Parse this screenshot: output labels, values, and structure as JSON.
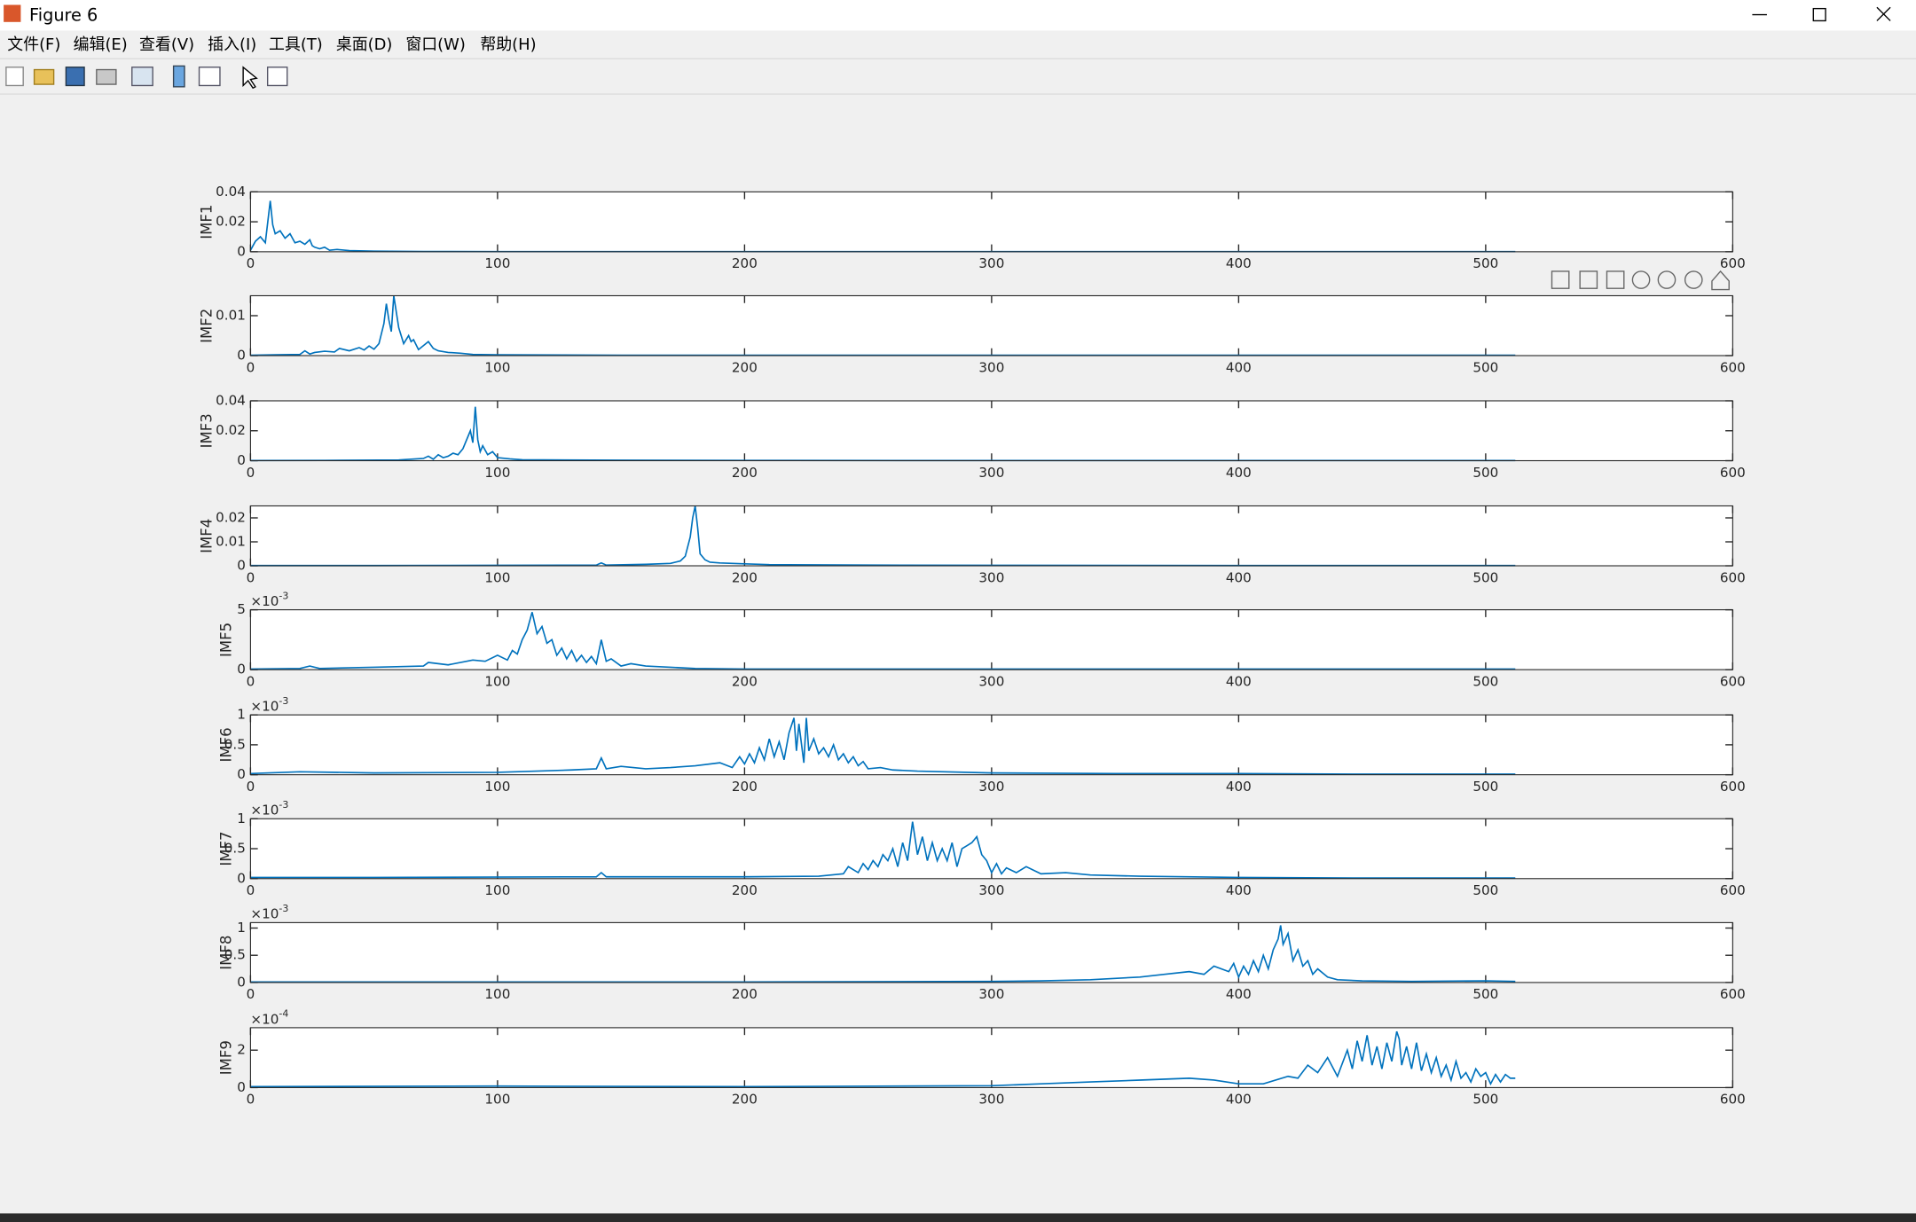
{
  "window": {
    "title": "Figure 6",
    "menu": [
      "文件(F)",
      "编辑(E)",
      "查看(V)",
      "插入(I)",
      "工具(T)",
      "桌面(D)",
      "窗口(W)",
      "帮助(H)"
    ]
  },
  "chart_data": [
    {
      "type": "line",
      "ylabel": "IMF1",
      "color": "#0072bd",
      "x": [
        0,
        2,
        4,
        6,
        7,
        8,
        9,
        10,
        12,
        14,
        16,
        18,
        20,
        22,
        24,
        25,
        26,
        28,
        30,
        32,
        35,
        40,
        50,
        70,
        100,
        200,
        300,
        400,
        512
      ],
      "values": [
        0.001,
        0.007,
        0.01,
        0.006,
        0.02,
        0.034,
        0.018,
        0.012,
        0.014,
        0.009,
        0.012,
        0.006,
        0.007,
        0.005,
        0.008,
        0.004,
        0.003,
        0.002,
        0.003,
        0.001,
        0.0015,
        0.0008,
        0.0004,
        0.0002,
        0.0001,
        0.0001,
        0.0001,
        0.0001,
        0.0001
      ],
      "xlim": [
        0,
        600
      ],
      "xticks": [
        0,
        100,
        200,
        300,
        400,
        500,
        600
      ],
      "ylim": [
        0,
        0.04
      ],
      "yticks": [
        0,
        0.02,
        0.04
      ]
    },
    {
      "type": "line",
      "ylabel": "IMF2",
      "color": "#0072bd",
      "x": [
        0,
        10,
        20,
        22,
        24,
        26,
        30,
        34,
        36,
        40,
        44,
        46,
        48,
        50,
        52,
        54,
        55,
        56,
        57,
        58,
        59,
        60,
        62,
        64,
        65,
        66,
        68,
        70,
        72,
        74,
        76,
        80,
        85,
        90,
        100,
        150,
        200,
        300,
        400,
        512
      ],
      "values": [
        0.0001,
        0.0002,
        0.0003,
        0.0012,
        0.0004,
        0.0008,
        0.0011,
        0.0009,
        0.0018,
        0.0012,
        0.002,
        0.0014,
        0.0024,
        0.0016,
        0.003,
        0.008,
        0.013,
        0.009,
        0.006,
        0.015,
        0.011,
        0.007,
        0.003,
        0.005,
        0.0035,
        0.004,
        0.0015,
        0.0025,
        0.0035,
        0.0018,
        0.0012,
        0.0008,
        0.0006,
        0.0003,
        0.0002,
        0.0001,
        0.0001,
        0.0001,
        0.0001,
        0.0001
      ],
      "xlim": [
        0,
        600
      ],
      "xticks": [
        0,
        100,
        200,
        300,
        400,
        500,
        600
      ],
      "ylim": [
        0,
        0.015
      ],
      "yticks": [
        0,
        0.01
      ]
    },
    {
      "type": "line",
      "ylabel": "IMF3",
      "color": "#0072bd",
      "x": [
        0,
        30,
        60,
        70,
        72,
        74,
        76,
        78,
        80,
        82,
        84,
        86,
        88,
        89,
        90,
        91,
        92,
        93,
        94,
        96,
        98,
        100,
        105,
        110,
        150,
        200,
        300,
        400,
        512
      ],
      "values": [
        0.0001,
        0.0002,
        0.0005,
        0.0015,
        0.003,
        0.001,
        0.004,
        0.002,
        0.003,
        0.005,
        0.004,
        0.008,
        0.016,
        0.02,
        0.012,
        0.036,
        0.014,
        0.006,
        0.01,
        0.004,
        0.006,
        0.002,
        0.0012,
        0.0006,
        0.0003,
        0.0002,
        0.0001,
        0.0001,
        0.0001
      ],
      "xlim": [
        0,
        600
      ],
      "xticks": [
        0,
        100,
        200,
        300,
        400,
        500,
        600
      ],
      "ylim": [
        0,
        0.04
      ],
      "yticks": [
        0,
        0.02,
        0.04
      ]
    },
    {
      "type": "line",
      "ylabel": "IMF4",
      "color": "#0072bd",
      "x": [
        0,
        50,
        100,
        140,
        142,
        144,
        160,
        170,
        174,
        176,
        178,
        179,
        180,
        181,
        182,
        184,
        186,
        190,
        200,
        210,
        250,
        300,
        400,
        512
      ],
      "values": [
        0.0001,
        0.0001,
        0.0002,
        0.0003,
        0.0012,
        0.0003,
        0.0006,
        0.001,
        0.002,
        0.004,
        0.012,
        0.02,
        0.025,
        0.016,
        0.005,
        0.0025,
        0.0015,
        0.0012,
        0.0008,
        0.0005,
        0.0003,
        0.0002,
        0.0001,
        0.0001
      ],
      "xlim": [
        0,
        600
      ],
      "xticks": [
        0,
        100,
        200,
        300,
        400,
        500,
        600
      ],
      "ylim": [
        0,
        0.025
      ],
      "yticks": [
        0,
        0.01,
        0.02
      ]
    },
    {
      "type": "line",
      "ylabel": "IMF5",
      "color": "#0072bd",
      "y_exponent": {
        "base": "×10",
        "power": "-3"
      },
      "x": [
        0,
        20,
        24,
        28,
        50,
        70,
        72,
        80,
        90,
        95,
        100,
        104,
        106,
        108,
        110,
        112,
        114,
        116,
        118,
        120,
        122,
        124,
        126,
        128,
        130,
        132,
        134,
        136,
        138,
        140,
        142,
        144,
        146,
        150,
        154,
        160,
        170,
        180,
        200,
        300,
        400,
        512
      ],
      "values": [
        5e-05,
        0.0001,
        0.0003,
        0.0001,
        0.0002,
        0.0003,
        0.0006,
        0.0004,
        0.0008,
        0.0007,
        0.0012,
        0.0008,
        0.0016,
        0.0013,
        0.0025,
        0.0033,
        0.0048,
        0.003,
        0.0036,
        0.0022,
        0.0025,
        0.0012,
        0.0018,
        0.0009,
        0.0016,
        0.0007,
        0.0012,
        0.0006,
        0.0011,
        0.0005,
        0.0025,
        0.0007,
        0.0009,
        0.0003,
        0.0005,
        0.0003,
        0.0002,
        0.0001,
        5e-05,
        5e-05,
        5e-05,
        5e-05
      ],
      "xlim": [
        0,
        600
      ],
      "xticks": [
        0,
        100,
        200,
        300,
        400,
        500,
        600
      ],
      "ylim": [
        0,
        0.005
      ],
      "yticks": [
        0,
        {
          "value": 0.005,
          "label": "5"
        }
      ]
    },
    {
      "type": "line",
      "ylabel": "IMF6",
      "color": "#0072bd",
      "y_exponent": {
        "base": "×10",
        "power": "-3"
      },
      "x": [
        0,
        20,
        50,
        100,
        130,
        140,
        142,
        144,
        150,
        160,
        170,
        180,
        190,
        195,
        198,
        200,
        202,
        204,
        206,
        208,
        210,
        212,
        214,
        216,
        218,
        220,
        221,
        222,
        224,
        225,
        226,
        228,
        230,
        232,
        234,
        236,
        238,
        240,
        242,
        244,
        246,
        248,
        250,
        255,
        260,
        270,
        300,
        350,
        400,
        450,
        512
      ],
      "values": [
        2e-05,
        5e-05,
        3e-05,
        4e-05,
        8e-05,
        0.0001,
        0.00028,
        0.0001,
        0.00014,
        0.0001,
        0.00012,
        0.00015,
        0.0002,
        0.00012,
        0.0003,
        0.00018,
        0.00035,
        0.0002,
        0.00045,
        0.00025,
        0.0006,
        0.0003,
        0.00055,
        0.00025,
        0.0007,
        0.00095,
        0.0004,
        0.00085,
        0.0002,
        0.00095,
        0.0004,
        0.0006,
        0.00035,
        0.00045,
        0.0003,
        0.0005,
        0.00025,
        0.00035,
        0.0002,
        0.0003,
        0.00015,
        0.00022,
        0.0001,
        0.00012,
        8e-05,
        6e-05,
        3e-05,
        2e-05,
        2e-05,
        1e-05,
        1e-05
      ],
      "xlim": [
        0,
        600
      ],
      "xticks": [
        0,
        100,
        200,
        300,
        400,
        500,
        600
      ],
      "ylim": [
        0,
        0.001
      ],
      "yticks": [
        0,
        {
          "value": 0.0005,
          "label": "0.5"
        },
        {
          "value": 0.001,
          "label": "1"
        }
      ]
    },
    {
      "type": "line",
      "ylabel": "IMF7",
      "color": "#0072bd",
      "y_exponent": {
        "base": "×10",
        "power": "-3"
      },
      "x": [
        0,
        50,
        140,
        142,
        144,
        200,
        230,
        240,
        242,
        246,
        248,
        250,
        252,
        254,
        256,
        258,
        260,
        262,
        264,
        266,
        268,
        270,
        272,
        274,
        276,
        278,
        280,
        282,
        284,
        286,
        288,
        290,
        292,
        294,
        296,
        298,
        300,
        302,
        304,
        306,
        310,
        314,
        320,
        330,
        340,
        360,
        400,
        450,
        512
      ],
      "values": [
        2e-05,
        2e-05,
        3e-05,
        0.0001,
        3e-05,
        3e-05,
        4e-05,
        8e-05,
        0.0002,
        0.0001,
        0.00025,
        0.00015,
        0.0003,
        0.0002,
        0.0004,
        0.0003,
        0.0005,
        0.0002,
        0.0006,
        0.0003,
        0.00095,
        0.0004,
        0.0007,
        0.0003,
        0.0006,
        0.0003,
        0.0005,
        0.0003,
        0.0006,
        0.0002,
        0.0005,
        0.00055,
        0.0006,
        0.0007,
        0.0004,
        0.0003,
        0.0001,
        0.00025,
        8e-05,
        0.00018,
        0.0001,
        0.0002,
        8e-05,
        0.0001,
        6e-05,
        4e-05,
        2e-05,
        1e-05,
        1e-05
      ],
      "xlim": [
        0,
        600
      ],
      "xticks": [
        0,
        100,
        200,
        300,
        400,
        500,
        600
      ],
      "ylim": [
        0,
        0.001
      ],
      "yticks": [
        0,
        {
          "value": 0.0005,
          "label": "0.5"
        },
        {
          "value": 0.001,
          "label": "1"
        }
      ]
    },
    {
      "type": "line",
      "ylabel": "IMF8",
      "color": "#0072bd",
      "y_exponent": {
        "base": "×10",
        "power": "-3"
      },
      "x": [
        0,
        100,
        200,
        300,
        320,
        340,
        360,
        370,
        380,
        386,
        390,
        396,
        398,
        400,
        402,
        404,
        406,
        408,
        410,
        412,
        414,
        416,
        417,
        418,
        420,
        422,
        424,
        426,
        428,
        430,
        432,
        436,
        440,
        450,
        470,
        500,
        512
      ],
      "values": [
        1e-05,
        1e-05,
        1e-05,
        2e-05,
        3e-05,
        5e-05,
        0.0001,
        0.00015,
        0.0002,
        0.00015,
        0.0003,
        0.0002,
        0.00035,
        0.0001,
        0.0003,
        0.00015,
        0.0004,
        0.0002,
        0.0005,
        0.00025,
        0.0006,
        0.0008,
        0.00105,
        0.0007,
        0.0009,
        0.0004,
        0.0006,
        0.0003,
        0.0004,
        0.00015,
        0.00025,
        0.0001,
        5e-05,
        3e-05,
        2e-05,
        3e-05,
        2e-05
      ],
      "xlim": [
        0,
        600
      ],
      "xticks": [
        0,
        100,
        200,
        300,
        400,
        500,
        600
      ],
      "ylim": [
        0,
        0.0011
      ],
      "yticks": [
        0,
        {
          "value": 0.0005,
          "label": "0.5"
        },
        {
          "value": 0.001,
          "label": "1"
        }
      ]
    },
    {
      "type": "line",
      "ylabel": "IMF9",
      "color": "#0072bd",
      "y_exponent": {
        "base": "×10",
        "power": "-4"
      },
      "x": [
        0,
        100,
        200,
        300,
        320,
        340,
        360,
        380,
        390,
        400,
        410,
        420,
        424,
        428,
        432,
        436,
        440,
        444,
        446,
        448,
        450,
        452,
        454,
        456,
        458,
        460,
        462,
        464,
        465,
        466,
        468,
        470,
        472,
        474,
        476,
        478,
        480,
        482,
        484,
        486,
        488,
        490,
        492,
        494,
        496,
        498,
        500,
        502,
        504,
        506,
        508,
        510,
        512
      ],
      "values": [
        5e-06,
        8e-06,
        5e-06,
        1e-05,
        2e-05,
        3e-05,
        4e-05,
        5e-05,
        4e-05,
        2e-05,
        2e-05,
        6e-05,
        5e-05,
        0.00012,
        8e-05,
        0.00016,
        6e-05,
        0.0002,
        0.0001,
        0.00025,
        0.00014,
        0.00028,
        0.00012,
        0.00022,
        0.0001,
        0.00024,
        0.00014,
        0.0003,
        0.00026,
        0.00012,
        0.00022,
        0.0001,
        0.00024,
        9e-05,
        0.00018,
        8e-05,
        0.00016,
        6e-05,
        0.00012,
        4e-05,
        0.00014,
        5e-05,
        8e-05,
        3e-05,
        0.0001,
        6e-05,
        8e-05,
        2e-05,
        7e-05,
        3e-05,
        7e-05,
        5e-05,
        5e-05
      ],
      "xlim": [
        0,
        600
      ],
      "xticks": [
        0,
        100,
        200,
        300,
        400,
        500,
        600
      ],
      "ylim": [
        0,
        0.00032
      ],
      "yticks": [
        0,
        {
          "value": 0.0002,
          "label": "2"
        }
      ]
    }
  ]
}
